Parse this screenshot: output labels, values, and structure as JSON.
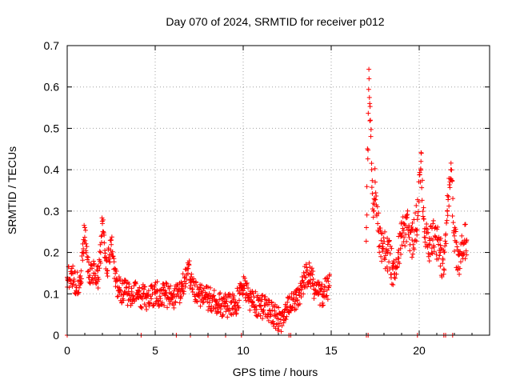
{
  "chart_data": {
    "type": "scatter",
    "title": "Day 070 of 2024, SRMTID for receiver p012",
    "xlabel": "GPS time / hours",
    "ylabel": "SRMTID / TECUs",
    "xlim": [
      0,
      24
    ],
    "ylim": [
      0,
      0.7
    ],
    "xticks": [
      0,
      5,
      10,
      15,
      20
    ],
    "yticks": [
      0,
      0.1,
      0.2,
      0.3,
      0.4,
      0.5,
      0.6,
      0.7
    ],
    "grid": true,
    "marker": "+",
    "color": "#ff0000",
    "series": [
      {
        "name": "SRMTID",
        "segments": [
          {
            "x": [
              0.0,
              0.25,
              0.5,
              0.75,
              0.9,
              1.0,
              1.25,
              1.5,
              1.75,
              1.9,
              2.0,
              2.25,
              2.5,
              2.75,
              3.0,
              3.5,
              4.0,
              4.5,
              5.0,
              5.5,
              6.0,
              6.5,
              6.9,
              7.0,
              7.5,
              8.0,
              8.5,
              9.0,
              9.5,
              9.8,
              10.0,
              10.5,
              11.0,
              11.5,
              12.0,
              12.3,
              12.5,
              13.0,
              13.3,
              13.5,
              13.8,
              14.0,
              14.3,
              14.5,
              14.9
            ],
            "y": [
              0.14,
              0.15,
              0.12,
              0.13,
              0.2,
              0.26,
              0.14,
              0.15,
              0.14,
              0.2,
              0.27,
              0.15,
              0.23,
              0.13,
              0.11,
              0.1,
              0.1,
              0.09,
              0.1,
              0.1,
              0.09,
              0.11,
              0.17,
              0.12,
              0.1,
              0.09,
              0.08,
              0.07,
              0.07,
              0.1,
              0.12,
              0.08,
              0.07,
              0.06,
              0.04,
              0.03,
              0.06,
              0.09,
              0.11,
              0.14,
              0.15,
              0.12,
              0.1,
              0.1,
              0.12
            ],
            "spread": 0.03
          },
          {
            "x": [
              17.0,
              17.15,
              17.3,
              17.4,
              17.5,
              17.7,
              17.9,
              18.2,
              18.5,
              18.8,
              19.0,
              19.3,
              19.6,
              19.9,
              20.1,
              20.3,
              20.6,
              20.9,
              21.2,
              21.4,
              21.6,
              21.8,
              22.0,
              22.2,
              22.5,
              22.7
            ],
            "y": [
              0.26,
              0.62,
              0.4,
              0.3,
              0.37,
              0.25,
              0.21,
              0.2,
              0.16,
              0.2,
              0.24,
              0.26,
              0.23,
              0.28,
              0.42,
              0.25,
              0.22,
              0.24,
              0.2,
              0.16,
              0.3,
              0.4,
              0.24,
              0.16,
              0.22,
              0.23
            ],
            "spread": 0.045
          }
        ]
      }
    ],
    "zero_markers_x": [
      0.0,
      4.2,
      6.2,
      7.0,
      8.0,
      9.0,
      9.9,
      12.6,
      12.7,
      17.0,
      17.1,
      19.9,
      21.4,
      21.5,
      21.9
    ]
  }
}
